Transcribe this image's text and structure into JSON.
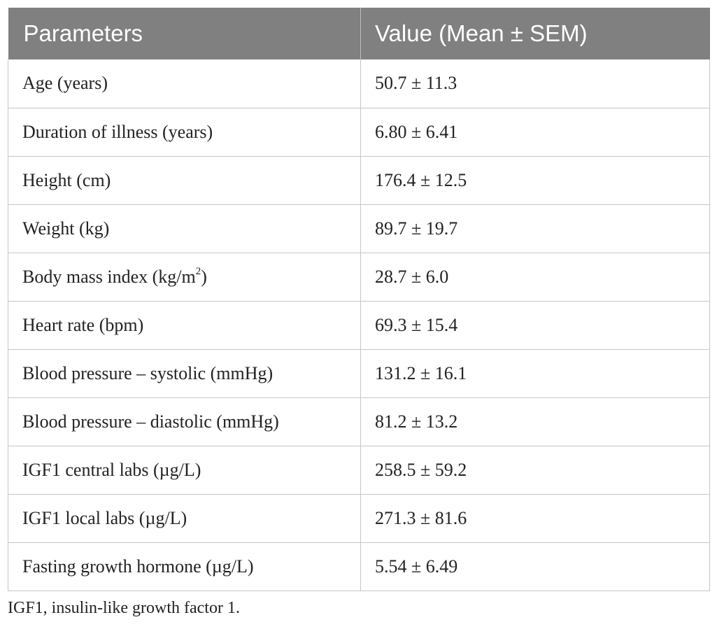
{
  "table": {
    "headers": [
      "Parameters",
      "Value (Mean ± SEM)"
    ],
    "rows": [
      {
        "parameter": "Age (years)",
        "value": "50.7 ± 11.3"
      },
      {
        "parameter": "Duration of illness (years)",
        "value": "6.80 ± 6.41"
      },
      {
        "parameter": "Height (cm)",
        "value": "176.4 ± 12.5"
      },
      {
        "parameter": "Weight (kg)",
        "value": "89.7 ± 19.7"
      },
      {
        "parameter": "Body mass index (kg/m",
        "parameter_sup": "2",
        "parameter_suffix": ")",
        "value": "28.7 ± 6.0"
      },
      {
        "parameter": "Heart rate (bpm)",
        "value": "69.3 ± 15.4"
      },
      {
        "parameter": "Blood pressure – systolic (mmHg)",
        "value": "131.2 ± 16.1"
      },
      {
        "parameter": "Blood pressure – diastolic (mmHg)",
        "value": "81.2 ± 13.2"
      },
      {
        "parameter": "IGF1 central labs (µg/L)",
        "value": "258.5 ± 59.2"
      },
      {
        "parameter": "IGF1 local labs (µg/L)",
        "value": "271.3 ± 81.6"
      },
      {
        "parameter": "Fasting growth hormone (µg/L)",
        "value": "5.54 ± 6.49"
      }
    ]
  },
  "footnote": "IGF1, insulin-like growth factor 1.",
  "colors": {
    "header_background": "#808080",
    "header_text": "#ffffff",
    "grid_line": "#c6c6c6"
  }
}
